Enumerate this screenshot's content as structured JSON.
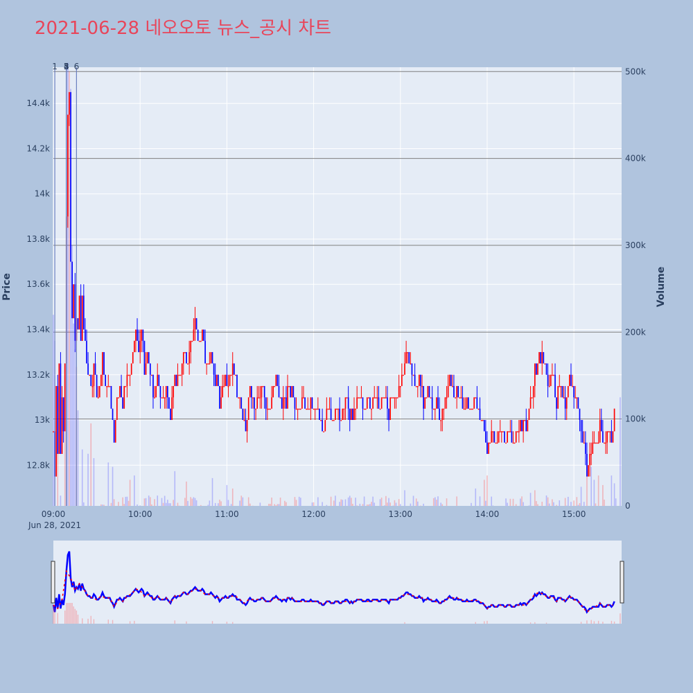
{
  "title": "2021-06-28 네오오토 뉴스_공시 차트",
  "colors": {
    "page_bg": "#b0c4de",
    "plot_bg": "#e5ecf6",
    "title": "#e8455a",
    "up": "#ff0000",
    "down": "#0000ff",
    "grid": "#ffffff",
    "marker_line": "#6a7fbf",
    "hline": "#7f7f7f"
  },
  "y_axis": {
    "title": "Price",
    "range": [
      12620,
      14560
    ],
    "ticks": [
      "12.8k",
      "13k",
      "13.2k",
      "13.4k",
      "13.6k",
      "13.8k",
      "14k",
      "14.2k",
      "14.4k"
    ],
    "tick_values": [
      12800,
      13000,
      13200,
      13400,
      13600,
      13800,
      14000,
      14200,
      14400
    ]
  },
  "y2_axis": {
    "title": "Volume",
    "range": [
      0,
      505000
    ],
    "ticks": [
      "0",
      "100k",
      "200k",
      "300k",
      "400k",
      "500k"
    ],
    "tick_values": [
      0,
      100000,
      200000,
      300000,
      400000,
      500000
    ]
  },
  "x_axis": {
    "ticks": [
      "09:00",
      "10:00",
      "11:00",
      "12:00",
      "13:00",
      "14:00",
      "15:00"
    ],
    "tick_minutes": [
      0,
      60,
      120,
      180,
      240,
      300,
      360
    ],
    "date_label": "Jun 28, 2021",
    "range_minutes": [
      0,
      393
    ]
  },
  "news_markers": [
    {
      "label": "1",
      "minute": 1
    },
    {
      "label": "2",
      "minute": 9
    },
    {
      "label": "3",
      "minute": 9
    },
    {
      "label": "4",
      "minute": 9
    },
    {
      "label": "5",
      "minute": 9
    },
    {
      "label": "6",
      "minute": 16
    }
  ],
  "chart_data": {
    "type": "candlestick",
    "x_unit": "minutes after 09:00",
    "anchors": [
      [
        0,
        12950
      ],
      [
        1,
        12750
      ],
      [
        2,
        13150
      ],
      [
        3,
        12850
      ],
      [
        4,
        13250
      ],
      [
        5,
        12850
      ],
      [
        6,
        13100
      ],
      [
        7,
        12950
      ],
      [
        8,
        13250
      ],
      [
        9,
        13900
      ],
      [
        10,
        14350
      ],
      [
        11,
        14450
      ],
      [
        12,
        13650
      ],
      [
        13,
        13450
      ],
      [
        14,
        13600
      ],
      [
        15,
        13350
      ],
      [
        16,
        13450
      ],
      [
        17,
        13350
      ],
      [
        18,
        13550
      ],
      [
        19,
        13350
      ],
      [
        20,
        13550
      ],
      [
        22,
        13350
      ],
      [
        24,
        13200
      ],
      [
        26,
        13150
      ],
      [
        28,
        13250
      ],
      [
        30,
        13100
      ],
      [
        32,
        13150
      ],
      [
        34,
        13300
      ],
      [
        36,
        13150
      ],
      [
        38,
        13200
      ],
      [
        40,
        13100
      ],
      [
        42,
        12950
      ],
      [
        44,
        13100
      ],
      [
        46,
        13150
      ],
      [
        48,
        13050
      ],
      [
        50,
        13150
      ],
      [
        52,
        13200
      ],
      [
        55,
        13300
      ],
      [
        57,
        13400
      ],
      [
        59,
        13300
      ],
      [
        61,
        13400
      ],
      [
        63,
        13200
      ],
      [
        65,
        13300
      ],
      [
        67,
        13200
      ],
      [
        70,
        13100
      ],
      [
        72,
        13200
      ],
      [
        75,
        13100
      ],
      [
        78,
        13150
      ],
      [
        81,
        13050
      ],
      [
        84,
        13200
      ],
      [
        87,
        13150
      ],
      [
        90,
        13300
      ],
      [
        93,
        13250
      ],
      [
        96,
        13350
      ],
      [
        98,
        13450
      ],
      [
        100,
        13350
      ],
      [
        103,
        13400
      ],
      [
        106,
        13250
      ],
      [
        109,
        13300
      ],
      [
        112,
        13200
      ],
      [
        115,
        13100
      ],
      [
        118,
        13200
      ],
      [
        121,
        13150
      ],
      [
        124,
        13250
      ],
      [
        127,
        13100
      ],
      [
        130,
        13050
      ],
      [
        133,
        12950
      ],
      [
        136,
        13150
      ],
      [
        139,
        13050
      ],
      [
        142,
        13100
      ],
      [
        145,
        13150
      ],
      [
        148,
        13050
      ],
      [
        151,
        13100
      ],
      [
        154,
        13200
      ],
      [
        157,
        13100
      ],
      [
        160,
        13050
      ],
      [
        163,
        13150
      ],
      [
        166,
        13100
      ],
      [
        169,
        13050
      ],
      [
        172,
        13100
      ],
      [
        175,
        13050
      ],
      [
        178,
        13100
      ],
      [
        181,
        13050
      ],
      [
        184,
        13000
      ],
      [
        187,
        12950
      ],
      [
        190,
        13050
      ],
      [
        193,
        13000
      ],
      [
        196,
        13050
      ],
      [
        199,
        13000
      ],
      [
        202,
        13100
      ],
      [
        205,
        13050
      ],
      [
        208,
        13000
      ],
      [
        211,
        13100
      ],
      [
        214,
        13050
      ],
      [
        217,
        13100
      ],
      [
        220,
        13050
      ],
      [
        223,
        13100
      ],
      [
        226,
        13050
      ],
      [
        229,
        13100
      ],
      [
        232,
        13050
      ],
      [
        235,
        13150
      ],
      [
        238,
        13100
      ],
      [
        241,
        13200
      ],
      [
        244,
        13300
      ],
      [
        247,
        13250
      ],
      [
        250,
        13150
      ],
      [
        253,
        13200
      ],
      [
        256,
        13050
      ],
      [
        259,
        13150
      ],
      [
        262,
        13050
      ],
      [
        265,
        13100
      ],
      [
        268,
        13000
      ],
      [
        271,
        13100
      ],
      [
        274,
        13200
      ],
      [
        277,
        13150
      ],
      [
        280,
        13100
      ],
      [
        283,
        13050
      ],
      [
        286,
        13100
      ],
      [
        289,
        13050
      ],
      [
        292,
        13100
      ],
      [
        295,
        13000
      ],
      [
        298,
        12950
      ],
      [
        300,
        12850
      ],
      [
        303,
        12950
      ],
      [
        306,
        12900
      ],
      [
        309,
        12950
      ],
      [
        312,
        12900
      ],
      [
        315,
        12950
      ],
      [
        318,
        12900
      ],
      [
        321,
        12950
      ],
      [
        324,
        13000
      ],
      [
        327,
        12950
      ],
      [
        330,
        13100
      ],
      [
        333,
        13200
      ],
      [
        336,
        13300
      ],
      [
        339,
        13250
      ],
      [
        342,
        13150
      ],
      [
        345,
        13200
      ],
      [
        348,
        13100
      ],
      [
        351,
        13150
      ],
      [
        354,
        13050
      ],
      [
        357,
        13200
      ],
      [
        360,
        13100
      ],
      [
        363,
        13050
      ],
      [
        366,
        12950
      ],
      [
        369,
        12750
      ],
      [
        372,
        12850
      ],
      [
        375,
        12900
      ],
      [
        378,
        12950
      ],
      [
        381,
        12900
      ],
      [
        384,
        12950
      ],
      [
        387,
        12900
      ],
      [
        388,
        13050
      ]
    ],
    "volume_spikes": [
      [
        0,
        220000
      ],
      [
        1,
        190000
      ],
      [
        3,
        130000
      ],
      [
        8,
        160000
      ],
      [
        9,
        450000
      ],
      [
        10,
        510000
      ],
      [
        11,
        500000
      ],
      [
        12,
        480000
      ],
      [
        13,
        300000
      ],
      [
        14,
        210000
      ],
      [
        15,
        180000
      ],
      [
        16,
        160000
      ],
      [
        17,
        110000
      ],
      [
        20,
        65000
      ],
      [
        24,
        60000
      ],
      [
        26,
        95000
      ],
      [
        28,
        55000
      ],
      [
        38,
        50000
      ],
      [
        41,
        45000
      ],
      [
        53,
        30000
      ],
      [
        56,
        35000
      ],
      [
        84,
        40000
      ],
      [
        92,
        28000
      ],
      [
        110,
        32000
      ],
      [
        120,
        24000
      ],
      [
        124,
        20000
      ],
      [
        243,
        18000
      ],
      [
        292,
        20000
      ],
      [
        298,
        30000
      ],
      [
        300,
        35000
      ],
      [
        330,
        15000
      ],
      [
        333,
        18000
      ],
      [
        341,
        12000
      ],
      [
        365,
        22000
      ],
      [
        369,
        40000
      ],
      [
        372,
        45000
      ],
      [
        374,
        30000
      ],
      [
        377,
        35000
      ],
      [
        380,
        24000
      ],
      [
        386,
        35000
      ],
      [
        388,
        26000
      ],
      [
        392,
        125000
      ]
    ]
  }
}
